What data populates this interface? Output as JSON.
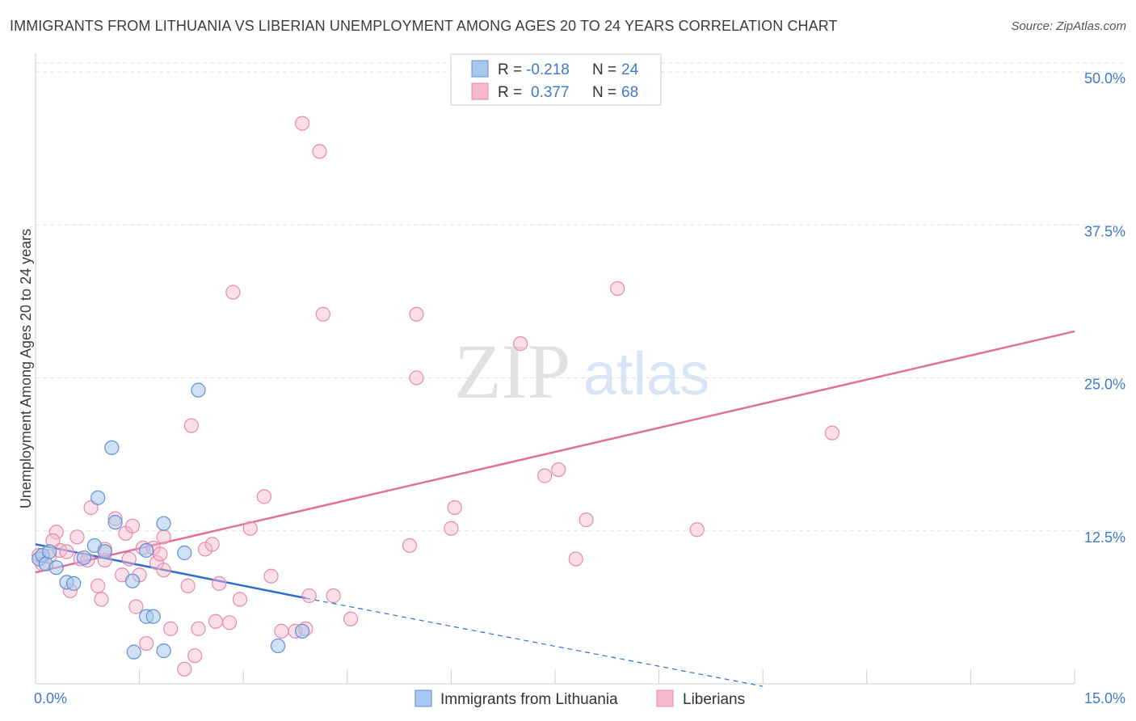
{
  "header": {
    "title": "IMMIGRANTS FROM LITHUANIA VS LIBERIAN UNEMPLOYMENT AMONG AGES 20 TO 24 YEARS CORRELATION CHART",
    "source": "Source: ZipAtlas.com"
  },
  "watermark": {
    "zip": "ZIP",
    "atlas": "atlas"
  },
  "colors": {
    "blue_fill": "#a9c8ef",
    "blue_stroke": "#5f8fd4",
    "blue_line": "#2f6fd0",
    "pink_fill": "#f6b8cc",
    "pink_stroke": "#e58aa8",
    "pink_line": "#e0709a",
    "tick_text": "#3f7ac8",
    "grid": "#e2e2e2"
  },
  "legend": {
    "rows": [
      {
        "r_label": "R =",
        "r_value": "-0.218",
        "n_label": "N =",
        "n_value": "24"
      },
      {
        "r_label": "R =",
        "r_value": "0.377",
        "n_label": "N =",
        "n_value": "68"
      }
    ]
  },
  "chart_data": {
    "type": "scatter",
    "title": "IMMIGRANTS FROM LITHUANIA VS LIBERIAN UNEMPLOYMENT AMONG AGES 20 TO 24 YEARS CORRELATION CHART",
    "xlabel": "",
    "ylabel": "Unemployment Among Ages 20 to 24 years",
    "xlim": [
      0,
      15
    ],
    "ylim": [
      0,
      50
    ],
    "x_tick_labels": [
      {
        "value": 0,
        "label": "0.0%"
      },
      {
        "value": 15,
        "label": "15.0%"
      }
    ],
    "y_tick_labels": [
      {
        "value": 12.5,
        "label": "12.5%"
      },
      {
        "value": 25,
        "label": "25.0%"
      },
      {
        "value": 37.5,
        "label": "37.5%"
      },
      {
        "value": 50,
        "label": "50.0%"
      }
    ],
    "series": [
      {
        "name": "Immigrants from Lithuania",
        "color": "blue",
        "points": [
          [
            0.05,
            10.2
          ],
          [
            0.1,
            10.5
          ],
          [
            0.15,
            9.8
          ],
          [
            0.2,
            10.8
          ],
          [
            0.3,
            9.5
          ],
          [
            0.45,
            8.3
          ],
          [
            0.55,
            8.2
          ],
          [
            0.7,
            10.3
          ],
          [
            0.85,
            11.3
          ],
          [
            0.9,
            15.2
          ],
          [
            1.0,
            10.8
          ],
          [
            1.1,
            19.3
          ],
          [
            1.15,
            13.2
          ],
          [
            1.4,
            8.4
          ],
          [
            1.6,
            10.9
          ],
          [
            1.6,
            5.5
          ],
          [
            1.7,
            5.5
          ],
          [
            1.85,
            13.1
          ],
          [
            2.15,
            10.7
          ],
          [
            2.35,
            24.0
          ],
          [
            1.42,
            2.6
          ],
          [
            1.85,
            2.7
          ],
          [
            3.5,
            3.1
          ],
          [
            3.85,
            4.3
          ]
        ],
        "trend": {
          "x": [
            0,
            3.9
          ],
          "y": [
            11.4,
            7.0
          ]
        },
        "trend_dashed": {
          "x": [
            3.9,
            10.5
          ],
          "y": [
            7.0,
            -0.2
          ]
        }
      },
      {
        "name": "Liberians",
        "color": "pink",
        "points": [
          [
            0.05,
            10.5
          ],
          [
            0.1,
            9.8
          ],
          [
            0.2,
            10.4
          ],
          [
            0.3,
            12.4
          ],
          [
            0.35,
            10.9
          ],
          [
            0.45,
            10.8
          ],
          [
            0.5,
            7.6
          ],
          [
            0.6,
            12.0
          ],
          [
            0.65,
            10.2
          ],
          [
            0.75,
            10.1
          ],
          [
            0.8,
            14.4
          ],
          [
            0.9,
            8.0
          ],
          [
            0.95,
            6.9
          ],
          [
            1.0,
            10.1
          ],
          [
            1.15,
            13.5
          ],
          [
            1.25,
            8.9
          ],
          [
            1.3,
            12.3
          ],
          [
            1.35,
            10.2
          ],
          [
            1.4,
            12.9
          ],
          [
            1.5,
            8.9
          ],
          [
            1.55,
            11.1
          ],
          [
            1.6,
            3.3
          ],
          [
            1.7,
            11.1
          ],
          [
            1.75,
            9.9
          ],
          [
            1.85,
            9.3
          ],
          [
            1.85,
            12.0
          ],
          [
            1.95,
            4.5
          ],
          [
            2.2,
            8.0
          ],
          [
            2.25,
            21.1
          ],
          [
            2.3,
            2.3
          ],
          [
            2.35,
            4.5
          ],
          [
            2.45,
            11.0
          ],
          [
            2.55,
            11.4
          ],
          [
            2.65,
            8.2
          ],
          [
            2.8,
            5.0
          ],
          [
            2.85,
            32.0
          ],
          [
            2.95,
            6.9
          ],
          [
            3.1,
            12.7
          ],
          [
            3.3,
            15.3
          ],
          [
            3.4,
            8.8
          ],
          [
            3.55,
            4.3
          ],
          [
            3.75,
            4.3
          ],
          [
            3.85,
            45.8
          ],
          [
            3.9,
            4.5
          ],
          [
            3.95,
            7.2
          ],
          [
            4.1,
            43.5
          ],
          [
            4.15,
            30.2
          ],
          [
            4.3,
            7.2
          ],
          [
            4.55,
            5.3
          ],
          [
            5.4,
            11.3
          ],
          [
            5.5,
            30.2
          ],
          [
            5.5,
            25.0
          ],
          [
            6.0,
            12.7
          ],
          [
            6.05,
            14.4
          ],
          [
            7.0,
            27.8
          ],
          [
            7.35,
            17.0
          ],
          [
            7.55,
            17.5
          ],
          [
            7.8,
            10.2
          ],
          [
            7.95,
            13.4
          ],
          [
            8.4,
            32.3
          ],
          [
            9.55,
            12.6
          ],
          [
            11.5,
            20.5
          ],
          [
            0.25,
            11.7
          ],
          [
            1.0,
            11.0
          ],
          [
            1.45,
            6.3
          ],
          [
            2.15,
            1.2
          ],
          [
            1.8,
            10.6
          ],
          [
            2.6,
            5.1
          ]
        ],
        "trend": {
          "x": [
            0,
            15
          ],
          "y": [
            9.1,
            28.8
          ]
        }
      }
    ],
    "legend_position": "top-center",
    "bottom_legend": [
      "Immigrants from Lithuania",
      "Liberians"
    ],
    "grid": true
  }
}
